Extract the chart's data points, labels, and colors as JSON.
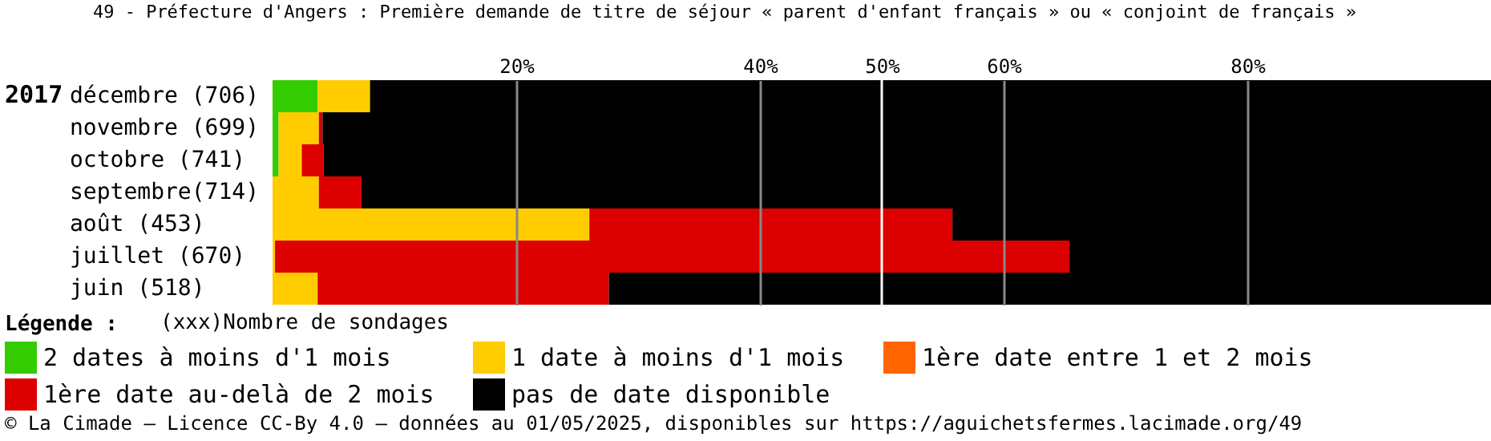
{
  "chart_data": {
    "type": "bar",
    "orientation": "horizontal",
    "stacked": true,
    "title": "49 - Préfecture d'Angers : Première demande de titre de séjour « parent d'enfant français » ou « conjoint de français »",
    "categories": [
      "décembre (706)",
      "novembre (699)",
      "octobre (741)",
      "septembre(714)",
      "août (453)",
      "juillet (670)",
      "juin (518)"
    ],
    "series": [
      {
        "name": "2 dates à moins d'1 mois",
        "color": "#33cc00",
        "values": [
          3.7,
          0.5,
          0.5,
          0,
          0,
          0,
          0
        ]
      },
      {
        "name": "1 date à moins d'1 mois",
        "color": "#ffcc00",
        "values": [
          4.3,
          3.3,
          1.9,
          3.8,
          26.0,
          0.2,
          3.7
        ]
      },
      {
        "name": "1ère date entre 1 et 2 mois",
        "color": "#ff6600",
        "values": [
          0,
          0,
          0,
          0,
          0,
          0,
          0
        ]
      },
      {
        "name": "1ère date au-delà de 2 mois",
        "color": "#dd0000",
        "values": [
          0,
          0.3,
          1.8,
          3.5,
          29.8,
          65.2,
          23.9
        ]
      },
      {
        "name": "pas de date disponible",
        "color": "#000000",
        "values": [
          92.0,
          95.9,
          95.8,
          92.7,
          44.2,
          34.6,
          72.4
        ]
      }
    ],
    "xlim": [
      0,
      100
    ],
    "xticks": [
      {
        "value": 20,
        "label": "20%"
      },
      {
        "value": 40,
        "label": "40%"
      },
      {
        "value": 50,
        "label": "50%"
      },
      {
        "value": 60,
        "label": "60%"
      },
      {
        "value": 80,
        "label": "80%"
      }
    ],
    "grid": "x",
    "ref_lines": [
      {
        "axis": "x",
        "value": 50,
        "color": "#ffffff"
      }
    ],
    "legend": "bottom",
    "legend_title": "Légende :",
    "annotations": [
      "2017",
      "(xxx)Nombre de sondages",
      "© La Cimade – Licence CC-By 4.0 – données au 01/05/2025, disponibles sur https://aguichetsfermes.lacimade.org/49"
    ]
  }
}
